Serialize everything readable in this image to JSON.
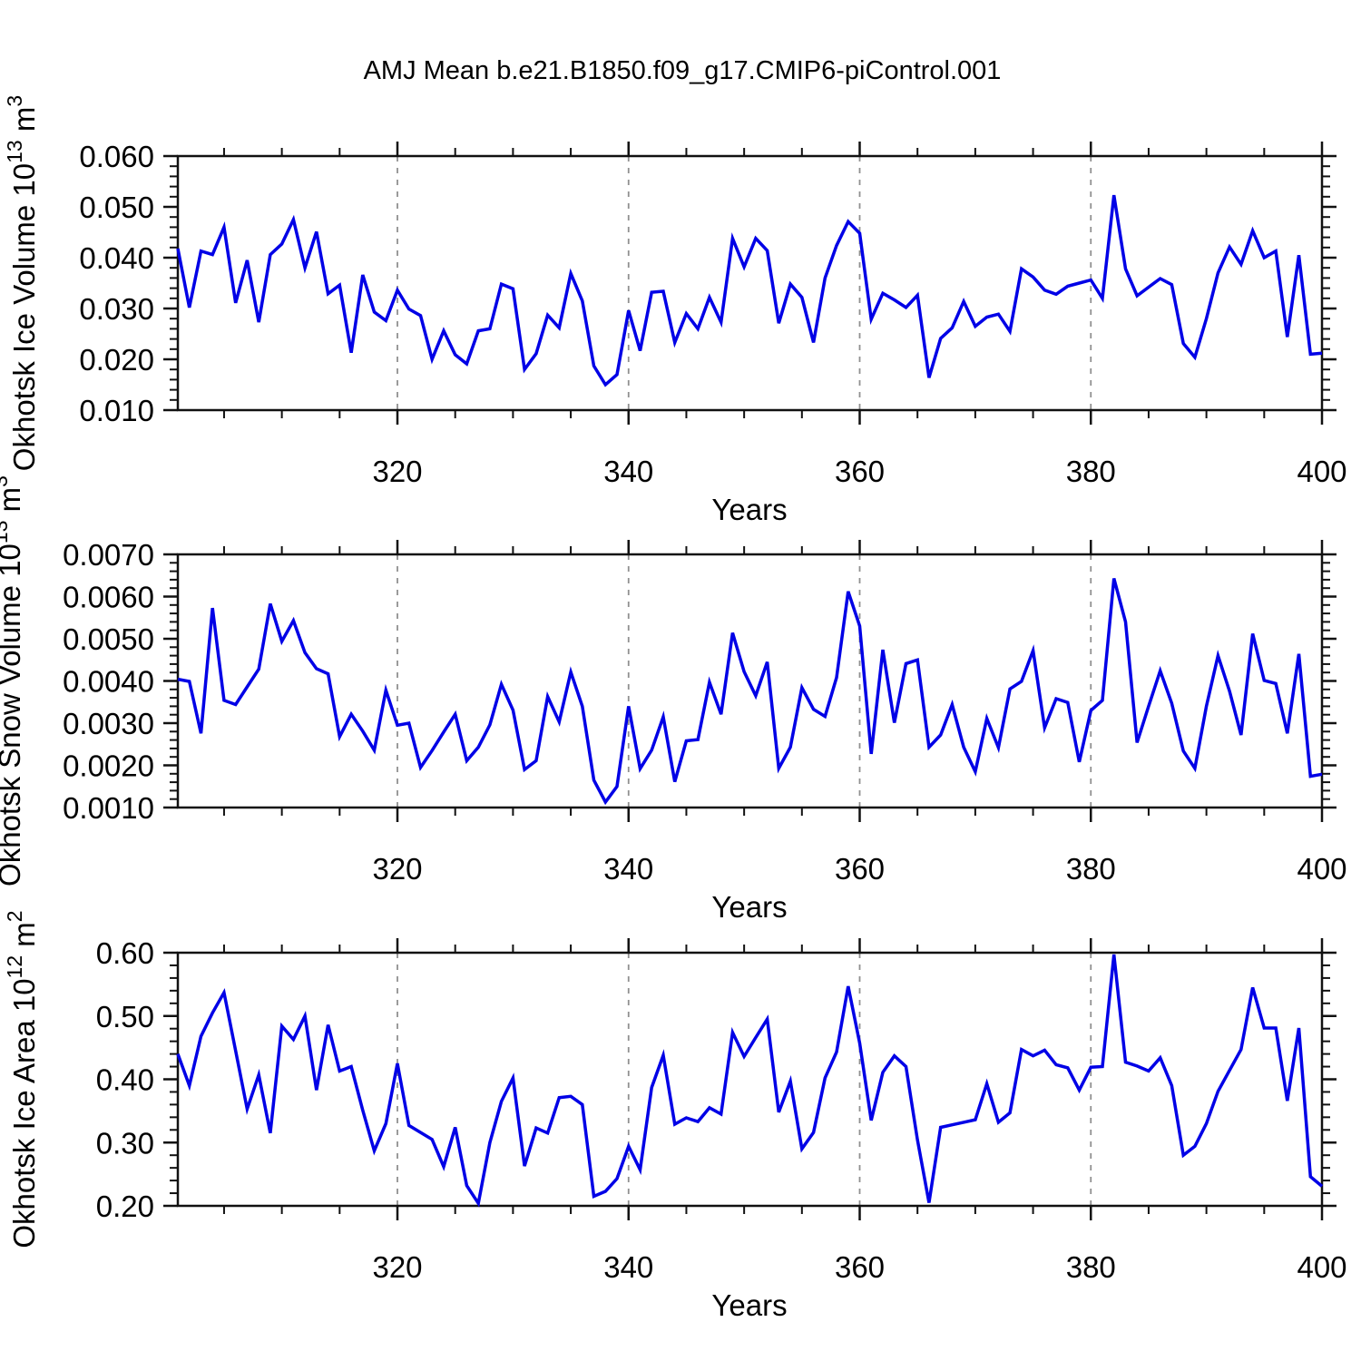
{
  "title": "AMJ Mean b.e21.B1850.f09_g17.CMIP6-piControl.001",
  "chart_data": {
    "type": "line",
    "title": "AMJ Mean b.e21.B1850.f09_g17.CMIP6-piControl.001",
    "xlabel": "Years",
    "xlim": [
      301,
      400
    ],
    "xticks": [
      320,
      340,
      360,
      380,
      400
    ],
    "xtick_labels": [
      "320",
      "340",
      "360",
      "380",
      "400"
    ],
    "xminor_step": 5,
    "grid_years": [
      320,
      340,
      360,
      380
    ],
    "legend": "none",
    "line_color": "#0000E6",
    "frame_color": "#111111",
    "grid_color": "#909090",
    "years": [
      301,
      302,
      303,
      304,
      305,
      306,
      307,
      308,
      309,
      310,
      311,
      312,
      313,
      314,
      315,
      316,
      317,
      318,
      319,
      320,
      321,
      322,
      323,
      324,
      325,
      326,
      327,
      328,
      329,
      330,
      331,
      332,
      333,
      334,
      335,
      336,
      337,
      338,
      339,
      340,
      341,
      342,
      343,
      344,
      345,
      346,
      347,
      348,
      349,
      350,
      351,
      352,
      353,
      354,
      355,
      356,
      357,
      358,
      359,
      360,
      361,
      362,
      363,
      364,
      365,
      366,
      367,
      368,
      369,
      370,
      371,
      372,
      373,
      374,
      375,
      376,
      377,
      378,
      379,
      380,
      381,
      382,
      383,
      384,
      385,
      386,
      387,
      388,
      389,
      390,
      391,
      392,
      393,
      394,
      395,
      396,
      397,
      398,
      399,
      400
    ],
    "panels": [
      {
        "id": "ice-volume",
        "ylabel_base": "Okhotsk Ice Volume 10",
        "ylabel_exp": "13",
        "ylabel_unit": " m",
        "ylabel_unit_exp": "3",
        "ylim": [
          0.01,
          0.06
        ],
        "yticks": [
          0.01,
          0.02,
          0.03,
          0.04,
          0.05,
          0.06
        ],
        "ytick_labels": [
          "0.010",
          "0.020",
          "0.030",
          "0.040",
          "0.050",
          "0.060"
        ],
        "yminor_step": 0.002,
        "values": [
          0.0418,
          0.0302,
          0.0413,
          0.0406,
          0.046,
          0.0311,
          0.0395,
          0.0273,
          0.0406,
          0.0427,
          0.0475,
          0.038,
          0.0451,
          0.0329,
          0.0346,
          0.0213,
          0.0366,
          0.0293,
          0.0276,
          0.0336,
          0.0299,
          0.0286,
          0.02,
          0.0256,
          0.0209,
          0.0191,
          0.0256,
          0.026,
          0.0348,
          0.0339,
          0.018,
          0.0211,
          0.0287,
          0.0262,
          0.0369,
          0.0315,
          0.0187,
          0.015,
          0.017,
          0.0296,
          0.0217,
          0.0332,
          0.0334,
          0.0233,
          0.029,
          0.026,
          0.0322,
          0.0273,
          0.0438,
          0.0382,
          0.0438,
          0.0414,
          0.0271,
          0.0348,
          0.0322,
          0.0233,
          0.036,
          0.0424,
          0.0471,
          0.0448,
          0.0279,
          0.033,
          0.0317,
          0.0302,
          0.0326,
          0.0164,
          0.0241,
          0.0262,
          0.0314,
          0.0265,
          0.0283,
          0.0289,
          0.0255,
          0.0378,
          0.0362,
          0.0336,
          0.0328,
          0.0344,
          0.035,
          0.0356,
          0.032,
          0.0523,
          0.0378,
          0.0325,
          0.0342,
          0.0359,
          0.0347,
          0.0231,
          0.0204,
          0.028,
          0.037,
          0.0421,
          0.0387,
          0.0453,
          0.04,
          0.0413,
          0.0244,
          0.0405,
          0.021,
          0.0212
        ]
      },
      {
        "id": "snow-volume",
        "ylabel_base": "Okhotsk Snow Volume 10",
        "ylabel_exp": "13",
        "ylabel_unit": " m",
        "ylabel_unit_exp": "3",
        "ylim": [
          0.001,
          0.007
        ],
        "yticks": [
          0.001,
          0.002,
          0.003,
          0.004,
          0.005,
          0.006,
          0.007
        ],
        "ytick_labels": [
          "0.0010",
          "0.0020",
          "0.0030",
          "0.0040",
          "0.0050",
          "0.0060",
          "0.0070"
        ],
        "yminor_step": 0.0002,
        "values": [
          0.00404,
          0.00399,
          0.00276,
          0.00573,
          0.00354,
          0.00344,
          0.00386,
          0.00428,
          0.00583,
          0.00494,
          0.00543,
          0.00467,
          0.00429,
          0.00417,
          0.00268,
          0.00321,
          0.00281,
          0.00236,
          0.00378,
          0.00295,
          0.003,
          0.00195,
          0.00235,
          0.00279,
          0.00321,
          0.00211,
          0.00243,
          0.00296,
          0.00392,
          0.00331,
          0.0019,
          0.00211,
          0.00363,
          0.00303,
          0.00421,
          0.0034,
          0.00165,
          0.00113,
          0.0015,
          0.0034,
          0.00192,
          0.00236,
          0.00315,
          0.00161,
          0.00258,
          0.00261,
          0.00397,
          0.00321,
          0.00514,
          0.00422,
          0.00365,
          0.00445,
          0.00193,
          0.00243,
          0.00384,
          0.00333,
          0.00316,
          0.00408,
          0.00612,
          0.0053,
          0.00227,
          0.00474,
          0.00301,
          0.00441,
          0.0045,
          0.00243,
          0.00272,
          0.00344,
          0.00243,
          0.00185,
          0.00311,
          0.00242,
          0.00381,
          0.00399,
          0.00472,
          0.00289,
          0.00358,
          0.00349,
          0.00208,
          0.0033,
          0.00354,
          0.00643,
          0.0054,
          0.00254,
          0.0034,
          0.00424,
          0.00347,
          0.00234,
          0.00193,
          0.0034,
          0.0046,
          0.00376,
          0.00272,
          0.00512,
          0.00401,
          0.00394,
          0.00276,
          0.00464,
          0.00174,
          0.00179
        ]
      },
      {
        "id": "ice-area",
        "ylabel_base": "Okhotsk Ice Area 10",
        "ylabel_exp": "12",
        "ylabel_unit": " m",
        "ylabel_unit_exp": "2",
        "ylim": [
          0.2,
          0.6
        ],
        "yticks": [
          0.2,
          0.3,
          0.4,
          0.5,
          0.6
        ],
        "ytick_labels": [
          "0.20",
          "0.30",
          "0.40",
          "0.50",
          "0.60"
        ],
        "yminor_step": 0.02,
        "values": [
          0.44,
          0.39,
          0.468,
          0.505,
          0.537,
          0.445,
          0.353,
          0.407,
          0.315,
          0.484,
          0.463,
          0.5,
          0.383,
          0.486,
          0.413,
          0.42,
          0.351,
          0.287,
          0.33,
          0.425,
          0.327,
          0.316,
          0.305,
          0.262,
          0.324,
          0.232,
          0.204,
          0.3,
          0.365,
          0.402,
          0.263,
          0.323,
          0.315,
          0.371,
          0.373,
          0.36,
          0.215,
          0.223,
          0.243,
          0.294,
          0.257,
          0.387,
          0.438,
          0.329,
          0.339,
          0.333,
          0.355,
          0.345,
          0.474,
          0.436,
          0.466,
          0.495,
          0.348,
          0.397,
          0.29,
          0.316,
          0.402,
          0.443,
          0.547,
          0.457,
          0.335,
          0.411,
          0.437,
          0.42,
          0.304,
          0.205,
          0.324,
          0.328,
          0.332,
          0.336,
          0.393,
          0.332,
          0.347,
          0.447,
          0.437,
          0.446,
          0.423,
          0.418,
          0.383,
          0.419,
          0.42,
          0.597,
          0.427,
          0.421,
          0.413,
          0.434,
          0.39,
          0.28,
          0.294,
          0.33,
          0.381,
          0.414,
          0.447,
          0.545,
          0.481,
          0.481,
          0.366,
          0.481,
          0.246,
          0.231
        ]
      }
    ]
  }
}
